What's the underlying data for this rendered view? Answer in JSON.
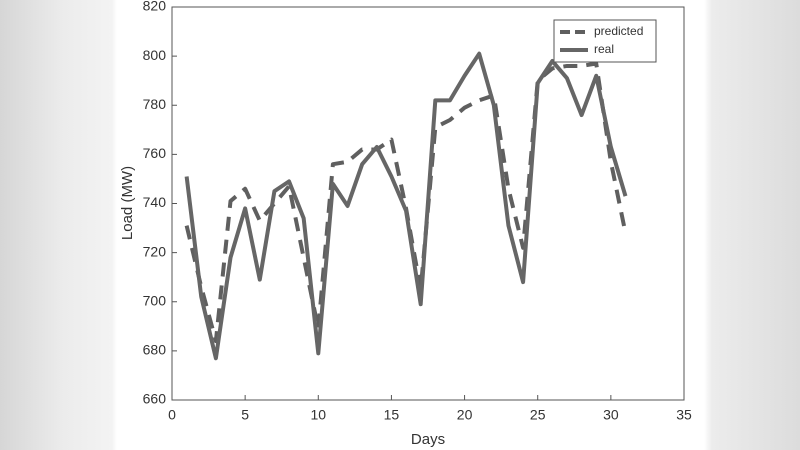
{
  "chart_data": {
    "type": "line",
    "x_label": "Days",
    "y_label": "Load (MW)",
    "x": [
      1,
      2,
      3,
      4,
      5,
      6,
      7,
      8,
      9,
      10,
      11,
      12,
      13,
      14,
      15,
      16,
      17,
      18,
      19,
      20,
      21,
      22,
      23,
      24,
      25,
      26,
      27,
      28,
      29,
      30,
      31
    ],
    "series": [
      {
        "name": "predicted",
        "color": "#5f5f5f",
        "dashed": true,
        "values": [
          731,
          706,
          684,
          741,
          746,
          733,
          740,
          747,
          718,
          689,
          756,
          757,
          762,
          762,
          766,
          738,
          705,
          771,
          774,
          779,
          782,
          784,
          746,
          722,
          790,
          795,
          796,
          796,
          797,
          757,
          728
        ]
      },
      {
        "name": "real",
        "color": "#666666",
        "dashed": false,
        "values": [
          751,
          702,
          677,
          718,
          738,
          709,
          745,
          749,
          734,
          679,
          748,
          739,
          756,
          763,
          751,
          737,
          699,
          782,
          782,
          792,
          801,
          780,
          731,
          708,
          789,
          798,
          791,
          776,
          792,
          763,
          743
        ]
      }
    ],
    "xlim": [
      0,
      35
    ],
    "xticks": [
      0,
      5,
      10,
      15,
      20,
      25,
      30,
      35
    ],
    "ylim": [
      660,
      820
    ],
    "yticks": [
      660,
      680,
      700,
      720,
      740,
      760,
      780,
      800,
      820
    ],
    "legend": "upper right"
  }
}
